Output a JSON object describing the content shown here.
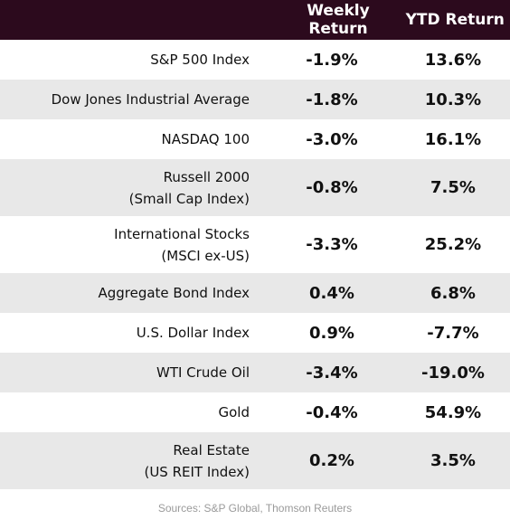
{
  "header": {
    "weekly": "Weekly Return",
    "ytd": "YTD Return"
  },
  "rows": [
    {
      "name1": "S&P 500 Index",
      "name2": "",
      "weekly": "-1.9%",
      "ytd": "13.6%"
    },
    {
      "name1": "Dow Jones Industrial Average",
      "name2": "",
      "weekly": "-1.8%",
      "ytd": "10.3%"
    },
    {
      "name1": "NASDAQ 100",
      "name2": "",
      "weekly": "-3.0%",
      "ytd": "16.1%"
    },
    {
      "name1": "Russell 2000",
      "name2": "(Small Cap Index)",
      "weekly": "-0.8%",
      "ytd": "7.5%"
    },
    {
      "name1": "International Stocks",
      "name2": "(MSCI ex-US)",
      "weekly": "-3.3%",
      "ytd": "25.2%"
    },
    {
      "name1": "Aggregate Bond Index",
      "name2": "",
      "weekly": "0.4%",
      "ytd": "6.8%"
    },
    {
      "name1": "U.S. Dollar Index",
      "name2": "",
      "weekly": "0.9%",
      "ytd": "-7.7%"
    },
    {
      "name1": "WTI Crude Oil",
      "name2": "",
      "weekly": "-3.4%",
      "ytd": "-19.0%"
    },
    {
      "name1": "Gold",
      "name2": "",
      "weekly": "-0.4%",
      "ytd": "54.9%"
    },
    {
      "name1": "Real Estate",
      "name2": "(US REIT Index)",
      "weekly": "0.2%",
      "ytd": "3.5%"
    }
  ],
  "footer": {
    "source": "Sources: S&P Global, Thomson Reuters"
  },
  "colors": {
    "header_bg": "#2c0a1d",
    "alt_row_bg": "#e8e8e8",
    "footer_text": "#9a9a9a"
  }
}
